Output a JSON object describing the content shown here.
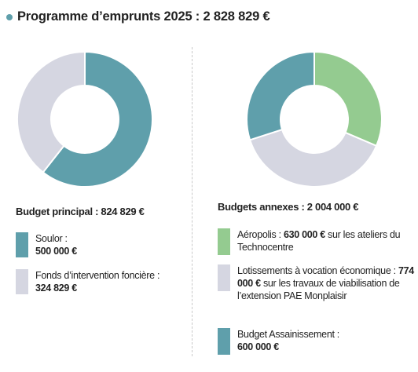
{
  "header": {
    "title": "Programme d’emprunts 2025 : 2 828 829 €"
  },
  "colors": {
    "teal": "#5f9fab",
    "light_grey": "#d5d6e1",
    "green": "#94cb90"
  },
  "chart_data": [
    {
      "type": "pie",
      "style": "donut",
      "title": "Budget principal : 824 829 €",
      "categories": [
        "Soulor",
        "Fonds d’intervention foncière"
      ],
      "values": [
        500000,
        324829
      ],
      "colors": [
        "#5f9fab",
        "#d5d6e1"
      ]
    },
    {
      "type": "pie",
      "style": "donut",
      "title": "Budgets annexes : 2 004 000 €",
      "categories": [
        "Aéropolis",
        "Lotissements à vocation économique",
        "Budget Assainissement"
      ],
      "values": [
        630000,
        774000,
        600000
      ],
      "colors": [
        "#94cb90",
        "#d5d6e1",
        "#5f9fab"
      ]
    }
  ],
  "legend_principal": [
    {
      "label": "Soulor :",
      "amount": "500 000 €",
      "color": "#5f9fab"
    },
    {
      "label": "Fonds d’intervention foncière :",
      "amount": "324 829 €",
      "color": "#d5d6e1"
    }
  ],
  "legend_annexes": [
    {
      "name": "Aéropolis : ",
      "amount": "630 000 €",
      "rest": " sur les ateliers du Technocentre",
      "color": "#94cb90"
    },
    {
      "name": "Lotissements à vocation économique : ",
      "amount": "774 000 €",
      "rest": " sur les travaux de viabilisation de l’extension PAE Monplaisir",
      "color": "#d5d6e1"
    },
    {
      "name": "Budget Assainissement :",
      "amount": "600 000 €",
      "color": "#5f9fab"
    }
  ]
}
